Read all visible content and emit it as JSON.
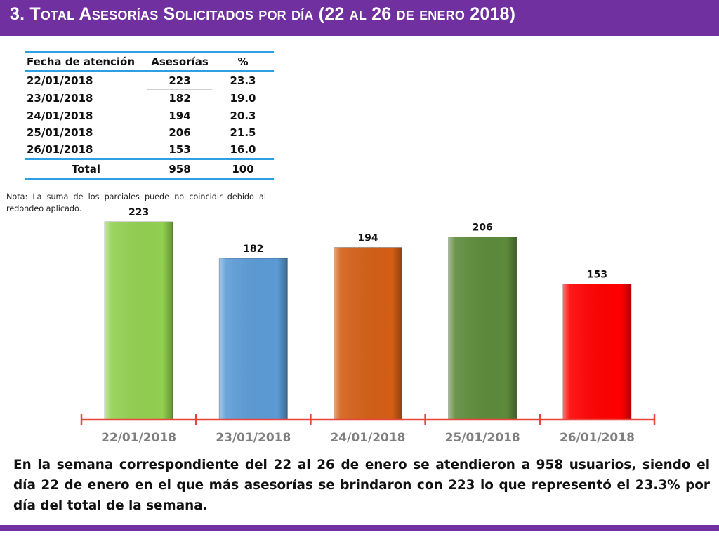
{
  "title": "3.  Total Asesorías Solicitados por día  (22 al 26 de enero 2018)",
  "table": {
    "headers": [
      "Fecha de atención",
      "Asesorías",
      "%"
    ],
    "rows": [
      {
        "date": "22/01/2018",
        "value": "223",
        "pct": "23.3"
      },
      {
        "date": "23/01/2018",
        "value": "182",
        "pct": "19.0"
      },
      {
        "date": "24/01/2018",
        "value": "194",
        "pct": "20.3"
      },
      {
        "date": "25/01/2018",
        "value": "206",
        "pct": "21.5"
      },
      {
        "date": "26/01/2018",
        "value": "153",
        "pct": "16.0"
      }
    ],
    "total": {
      "label": "Total",
      "value": "958",
      "pct": "100"
    }
  },
  "note": "Nota: La suma de los parciales puede no coincidir debido al redondeo aplicado.",
  "chart_data": {
    "type": "bar",
    "categories": [
      "22/01/2018",
      "23/01/2018",
      "24/01/2018",
      "25/01/2018",
      "26/01/2018"
    ],
    "values": [
      223,
      182,
      194,
      206,
      153
    ],
    "colors": [
      "#92d050",
      "#5b9bd5",
      "#d35f15",
      "#5c8a3a",
      "#ff0000"
    ],
    "axis_color": "#e8453c",
    "label_color": "#7f7f7f",
    "title": "",
    "xlabel": "",
    "ylabel": "",
    "ylim": [
      0,
      223
    ]
  },
  "summary": "En la semana correspondiente del 22 al 26 de enero se atendieron a 958 usuarios, siendo el día 22 de enero en el que más asesorías se brindaron con 223 lo que representó el 23.3% por día del total de la semana.",
  "colors": {
    "brand": "#7030a0",
    "table_rule": "#2e9fe0"
  }
}
